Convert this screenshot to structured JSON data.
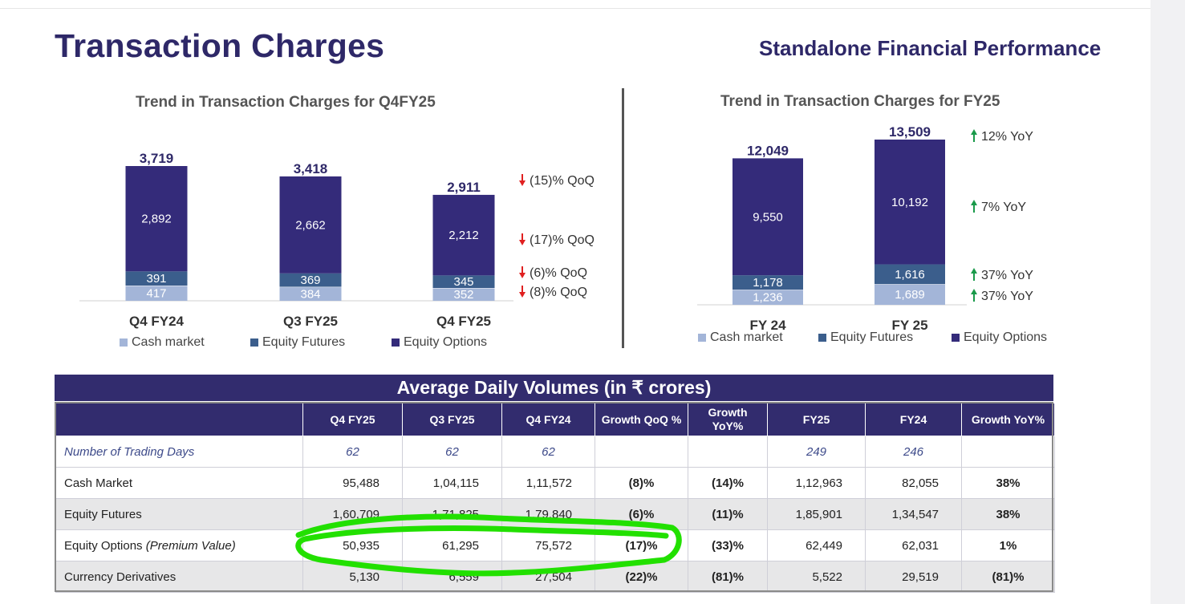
{
  "page": {
    "title": "Transaction Charges",
    "subtitle": "Standalone Financial Performance"
  },
  "colors": {
    "cash_market": "#a3b5d8",
    "equity_futures": "#3b5e8c",
    "equity_options": "#342b7a",
    "down_arrow": "#e02020",
    "up_arrow": "#1a9a4a",
    "header_bg": "#322c6e",
    "highlight": "#22e000"
  },
  "chart_data": [
    {
      "type": "bar",
      "stacked": true,
      "title": "Trend in Transaction Charges for Q4FY25",
      "categories": [
        "Q4 FY24",
        "Q3 FY25",
        "Q4 FY25"
      ],
      "series": [
        {
          "name": "Cash market",
          "values": [
            417,
            384,
            352
          ]
        },
        {
          "name": "Equity Futures",
          "values": [
            391,
            369,
            345
          ]
        },
        {
          "name": "Equity Options",
          "values": [
            2892,
            2662,
            2212
          ]
        }
      ],
      "totals": [
        "3,719",
        "3,418",
        "2,911"
      ],
      "segment_labels": [
        [
          "417",
          "391",
          "2,892"
        ],
        [
          "384",
          "369",
          "2,662"
        ],
        [
          "352",
          "345",
          "2,212"
        ]
      ],
      "annotations": [
        {
          "text": "(15)% QoQ",
          "direction": "down",
          "applies_to": "total"
        },
        {
          "text": "(17)% QoQ",
          "direction": "down",
          "applies_to": "Equity Options"
        },
        {
          "text": "(6)% QoQ",
          "direction": "down",
          "applies_to": "Equity Futures"
        },
        {
          "text": "(8)% QoQ",
          "direction": "down",
          "applies_to": "Cash market"
        }
      ],
      "legend_placement": "bottom"
    },
    {
      "type": "bar",
      "stacked": true,
      "title": "Trend in Transaction Charges for FY25",
      "categories": [
        "FY 24",
        "FY 25"
      ],
      "series": [
        {
          "name": "Cash market",
          "values": [
            1236,
            1689
          ]
        },
        {
          "name": "Equity Futures",
          "values": [
            1178,
            1616
          ]
        },
        {
          "name": "Equity Options",
          "values": [
            9550,
            10192
          ]
        }
      ],
      "totals": [
        "12,049",
        "13,509"
      ],
      "segment_labels": [
        [
          "1,236",
          "1,178",
          "9,550"
        ],
        [
          "1,689",
          "1,616",
          "10,192"
        ]
      ],
      "annotations": [
        {
          "text": "12% YoY",
          "direction": "up",
          "applies_to": "total"
        },
        {
          "text": "7% YoY",
          "direction": "up",
          "applies_to": "Equity Options"
        },
        {
          "text": "37% YoY",
          "direction": "up",
          "applies_to": "Equity Futures"
        },
        {
          "text": "37% YoY",
          "direction": "up",
          "applies_to": "Cash market"
        }
      ],
      "legend_placement": "bottom"
    }
  ],
  "table": {
    "title": "Average Daily Volumes (in ₹ crores)",
    "headers": [
      "",
      "Q4 FY25",
      "Q3 FY25",
      "Q4 FY24",
      "Growth QoQ %",
      "Growth YoY%",
      "FY25",
      "FY24",
      "Growth YoY%"
    ],
    "rows": [
      {
        "label": "Number of Trading Days",
        "cells": [
          "62",
          "62",
          "62",
          "",
          "",
          "249",
          "246",
          ""
        ]
      },
      {
        "label": "Cash Market",
        "cells": [
          "95,488",
          "1,04,115",
          "1,11,572",
          "(8)%",
          "(14)%",
          "1,12,963",
          "82,055",
          "38%"
        ]
      },
      {
        "label": "Equity Futures",
        "cells": [
          "1,60,709",
          "1,71,825",
          "1,79,840",
          "(6)%",
          "(11)%",
          "1,85,901",
          "1,34,547",
          "38%"
        ]
      },
      {
        "label": "Equity Options",
        "label_note": "(Premium Value)",
        "cells": [
          "50,935",
          "61,295",
          "75,572",
          "(17)%",
          "(33)%",
          "62,449",
          "62,031",
          "1%"
        ]
      },
      {
        "label": "Currency Derivatives",
        "cells": [
          "5,130",
          "6,559",
          "27,504",
          "(22)%",
          "(81)%",
          "5,522",
          "29,519",
          "(81)%"
        ]
      }
    ]
  }
}
